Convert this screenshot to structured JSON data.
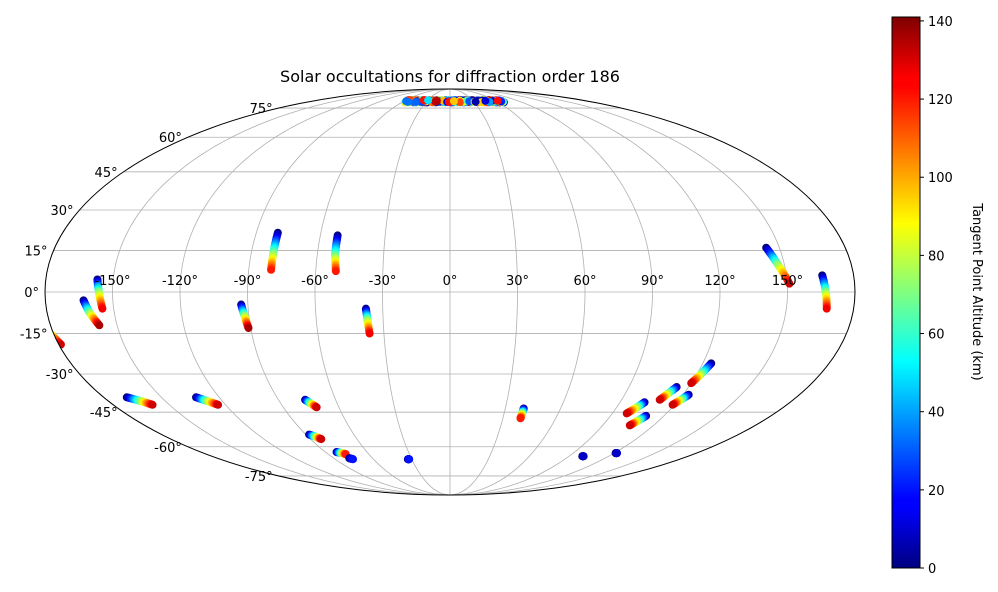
{
  "chart_data": {
    "type": "scatter",
    "projection": "mollweide",
    "title": "Solar occultations for diffraction order 186",
    "grid": true,
    "longitude_ticks": [
      "-150°",
      "-120°",
      "-90°",
      "-60°",
      "-30°",
      "0°",
      "30°",
      "60°",
      "90°",
      "120°",
      "150°"
    ],
    "longitude_tick_values": [
      -150,
      -120,
      -90,
      -60,
      -30,
      0,
      30,
      60,
      90,
      120,
      150
    ],
    "latitude_ticks": [
      "75°",
      "60°",
      "45°",
      "30°",
      "15°",
      "0°",
      "-15°",
      "-30°",
      "-45°",
      "-60°",
      "-75°"
    ],
    "latitude_tick_values": [
      75,
      60,
      45,
      30,
      15,
      0,
      -15,
      -30,
      -45,
      -60,
      -75
    ],
    "colorbar": {
      "label": "Tangent Point Altitude (km)",
      "colormap": "jet",
      "range": [
        0,
        141
      ],
      "ticks": [
        "0",
        "20",
        "40",
        "60",
        "80",
        "100",
        "120",
        "140"
      ],
      "tick_values": [
        0,
        20,
        40,
        60,
        80,
        100,
        120,
        140
      ]
    },
    "tracks": [
      {
        "lon": [
          -186,
          -182,
          -179
        ],
        "lat": [
          -9.5,
          -14,
          -19
        ],
        "alt": [
          0,
          70,
          130
        ]
      },
      {
        "lon": [
          -163,
          -161,
          -158
        ],
        "lat": [
          -3,
          -7.5,
          -12
        ],
        "alt": [
          0,
          70,
          135
        ]
      },
      {
        "lon": [
          -157,
          -156,
          -155
        ],
        "lat": [
          4.5,
          0,
          -6
        ],
        "alt": [
          0,
          70,
          125
        ]
      },
      {
        "lon": [
          -93,
          -92,
          -91
        ],
        "lat": [
          -4.5,
          -8.5,
          -13
        ],
        "alt": [
          0,
          70,
          135
        ]
      },
      {
        "lon": [
          -80,
          -80,
          -80
        ],
        "lat": [
          21.5,
          15,
          8
        ],
        "alt": [
          0,
          60,
          120
        ]
      },
      {
        "lon": [
          -52,
          -52,
          -51
        ],
        "lat": [
          20.5,
          14,
          7.5
        ],
        "alt": [
          0,
          60,
          120
        ]
      },
      {
        "lon": [
          -37.5,
          -37,
          -36.5
        ],
        "lat": [
          -6,
          -10,
          -15
        ],
        "alt": [
          0,
          70,
          125
        ]
      },
      {
        "lon": [
          -168,
          -163,
          -159
        ],
        "lat": [
          -39,
          -40.5,
          -42
        ],
        "alt": [
          0,
          70,
          130
        ]
      },
      {
        "lon": [
          -132,
          -128,
          -124
        ],
        "lat": [
          -39,
          -40.5,
          -42
        ],
        "alt": [
          0,
          70,
          130
        ]
      },
      {
        "lon": [
          -76,
          -74,
          -72
        ],
        "lat": [
          -40,
          -41.5,
          -43
        ],
        "alt": [
          0,
          70,
          130
        ]
      },
      {
        "lon": [
          -88,
          -85,
          -83
        ],
        "lat": [
          -54.5,
          -55.5,
          -56.5
        ],
        "alt": [
          0,
          70,
          130
        ]
      },
      {
        "lon": [
          -82,
          -79,
          -77
        ],
        "lat": [
          -62.5,
          -63,
          -63.5
        ],
        "alt": [
          0,
          70,
          120
        ]
      },
      {
        "lon": [
          -78,
          -76
        ],
        "lat": [
          -65.5,
          -66
        ],
        "alt": [
          0,
          20
        ]
      },
      {
        "lon": [
          -33,
          -32
        ],
        "lat": [
          -66,
          -66
        ],
        "alt": [
          0,
          20
        ]
      },
      {
        "lon": [
          40,
          40,
          40
        ],
        "lat": [
          -43.5,
          -45.5,
          -47.5
        ],
        "alt": [
          0,
          70,
          120
        ]
      },
      {
        "lon": [
          100,
          101
        ],
        "lat": [
          -64.5,
          -64.5
        ],
        "alt": [
          0,
          10
        ]
      },
      {
        "lon": [
          121,
          122
        ],
        "lat": [
          -63,
          -63
        ],
        "alt": [
          0,
          10
        ]
      },
      {
        "lon": [
          103,
          101,
          98
        ],
        "lat": [
          -41,
          -43,
          -45.5
        ],
        "alt": [
          0,
          70,
          130
        ]
      },
      {
        "lon": [
          110,
          108,
          106
        ],
        "lat": [
          -46.5,
          -48.5,
          -50.5
        ],
        "alt": [
          0,
          70,
          130
        ]
      },
      {
        "lon": [
          114,
          112,
          110
        ],
        "lat": [
          -35,
          -37.5,
          -40
        ],
        "alt": [
          0,
          70,
          130
        ]
      },
      {
        "lon": [
          123,
          121,
          119
        ],
        "lat": [
          -38,
          -40,
          -42
        ],
        "alt": [
          0,
          70,
          130
        ]
      },
      {
        "lon": [
          124,
          122,
          120
        ],
        "lat": [
          -26,
          -30,
          -33.5
        ],
        "alt": [
          0,
          70,
          130
        ]
      },
      {
        "lon": [
          144,
          147,
          151
        ],
        "lat": [
          16,
          10,
          3
        ],
        "alt": [
          0,
          70,
          130
        ]
      },
      {
        "lon": [
          166,
          167,
          168
        ],
        "lat": [
          6,
          0,
          -6
        ],
        "alt": [
          0,
          70,
          125
        ]
      }
    ],
    "polar_band": {
      "lon_range": [
        -57,
        68
      ],
      "lat": [
        78.5,
        80
      ],
      "alt_min": 0,
      "alt_max": 135
    }
  }
}
